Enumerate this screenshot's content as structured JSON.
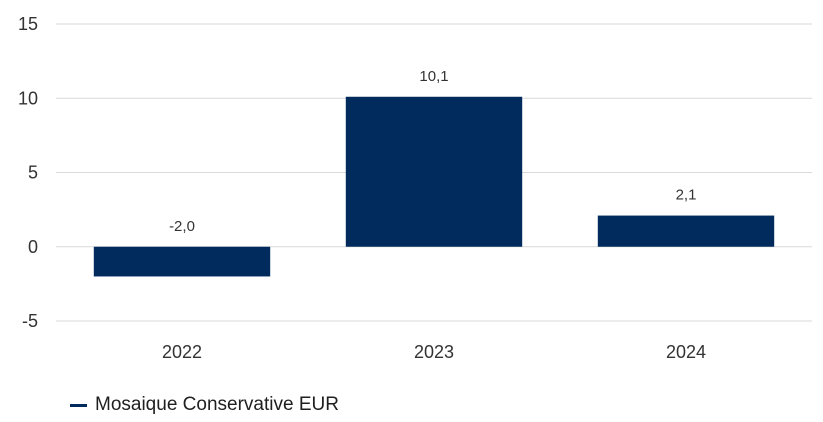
{
  "chart_data": {
    "type": "bar",
    "categories": [
      "2022",
      "2023",
      "2024"
    ],
    "series": [
      {
        "name": "Mosaique Conservative EUR",
        "values": [
          -2.0,
          10.1,
          2.1
        ],
        "value_labels": [
          "-2,0",
          "10,1",
          "2,1"
        ],
        "color": "#002b5c"
      }
    ],
    "ylim": [
      -5,
      15
    ],
    "yticks": [
      15,
      10,
      5,
      0,
      -5
    ],
    "ytick_labels": [
      "15",
      "10",
      "5",
      "0",
      "-5"
    ],
    "grid": true,
    "legend_position": "bottom-left",
    "title": "",
    "xlabel": "",
    "ylabel": ""
  }
}
